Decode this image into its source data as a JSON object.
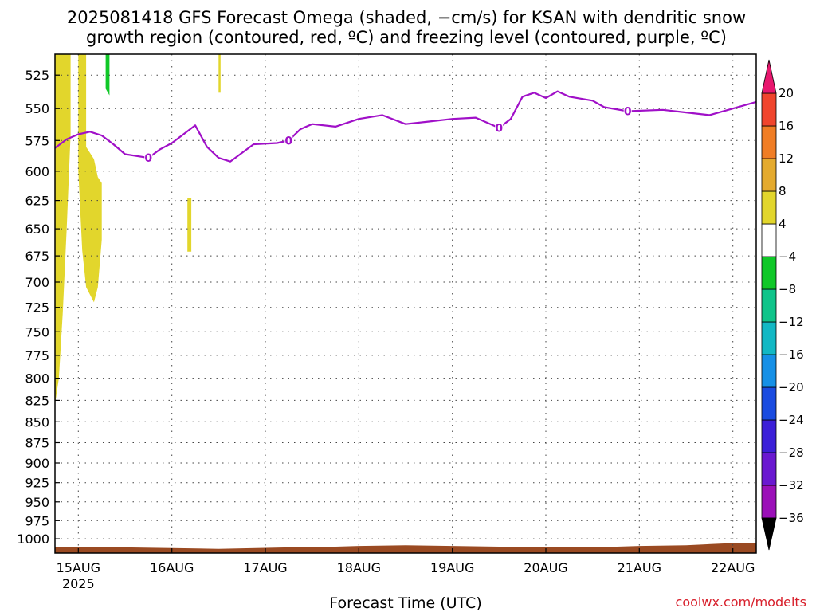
{
  "chart_data": {
    "type": "heatmap",
    "title": [
      "2025081418 GFS Forecast Omega (shaded, −cm/s) for KSAN with dendritic snow",
      "growth region (contoured, red, ºC) and freezing level (contoured, purple, ºC)"
    ],
    "xlabel": "Forecast Time (UTC)",
    "credit": "coolwx.com/modelts",
    "yaxis": {
      "scale": "log-pressure",
      "ticks": [
        525,
        550,
        575,
        600,
        625,
        650,
        675,
        700,
        725,
        750,
        775,
        800,
        825,
        850,
        875,
        900,
        925,
        950,
        975,
        1000
      ],
      "ylim": [
        1020,
        510
      ]
    },
    "xaxis": {
      "xlim": [
        "2025-08-14 18:00",
        "2025-08-22 06:00"
      ],
      "ticks": [
        {
          "t": "2025-08-15 00:00",
          "label": "15AUG",
          "sublabel": "2025"
        },
        {
          "t": "2025-08-16 00:00",
          "label": "16AUG"
        },
        {
          "t": "2025-08-17 00:00",
          "label": "17AUG"
        },
        {
          "t": "2025-08-18 00:00",
          "label": "18AUG"
        },
        {
          "t": "2025-08-19 00:00",
          "label": "19AUG"
        },
        {
          "t": "2025-08-20 00:00",
          "label": "20AUG"
        },
        {
          "t": "2025-08-21 00:00",
          "label": "21AUG"
        },
        {
          "t": "2025-08-22 00:00",
          "label": "22AUG"
        }
      ]
    },
    "grid": true,
    "colorbar": {
      "levels": [
        -36,
        -32,
        -28,
        -24,
        -20,
        -16,
        -12,
        -8,
        -4,
        4,
        8,
        12,
        16,
        20
      ],
      "colors": [
        "#9a9a9a",
        "#9b10b8",
        "#6a18d0",
        "#3c1fd8",
        "#1a4be0",
        "#1690e6",
        "#12b8c4",
        "#10c48a",
        "#10c828",
        "#ffffff",
        "#e2d62c",
        "#e4aa2e",
        "#f07d25",
        "#f0452d",
        "#ee1e78"
      ],
      "below_color": "#000000",
      "above_color": "#e8176e"
    },
    "freezing_level": {
      "label": "0",
      "color": "#a010c8",
      "points": [
        [
          "2025-08-14 18:00",
          581
        ],
        [
          "2025-08-14 21:00",
          574
        ],
        [
          "2025-08-15 00:00",
          570
        ],
        [
          "2025-08-15 03:00",
          568
        ],
        [
          "2025-08-15 06:00",
          571
        ],
        [
          "2025-08-15 09:00",
          578
        ],
        [
          "2025-08-15 12:00",
          586
        ],
        [
          "2025-08-15 18:00",
          589
        ],
        [
          "2025-08-15 21:00",
          582
        ],
        [
          "2025-08-16 00:00",
          577
        ],
        [
          "2025-08-16 03:00",
          570
        ],
        [
          "2025-08-16 06:00",
          563
        ],
        [
          "2025-08-16 09:00",
          580
        ],
        [
          "2025-08-16 12:00",
          589
        ],
        [
          "2025-08-16 15:00",
          592
        ],
        [
          "2025-08-16 21:00",
          578
        ],
        [
          "2025-08-17 03:00",
          577
        ],
        [
          "2025-08-17 06:00",
          575
        ],
        [
          "2025-08-17 09:00",
          566
        ],
        [
          "2025-08-17 12:00",
          562
        ],
        [
          "2025-08-17 18:00",
          564
        ],
        [
          "2025-08-18 00:00",
          558
        ],
        [
          "2025-08-18 06:00",
          555
        ],
        [
          "2025-08-18 12:00",
          562
        ],
        [
          "2025-08-18 18:00",
          560
        ],
        [
          "2025-08-19 00:00",
          558
        ],
        [
          "2025-08-19 06:00",
          557
        ],
        [
          "2025-08-19 12:00",
          565
        ],
        [
          "2025-08-19 15:00",
          558
        ],
        [
          "2025-08-19 18:00",
          541
        ],
        [
          "2025-08-19 21:00",
          538
        ],
        [
          "2025-08-20 00:00",
          542
        ],
        [
          "2025-08-20 03:00",
          537
        ],
        [
          "2025-08-20 06:00",
          541
        ],
        [
          "2025-08-20 12:00",
          544
        ],
        [
          "2025-08-20 15:00",
          549
        ],
        [
          "2025-08-20 21:00",
          552
        ],
        [
          "2025-08-21 06:00",
          551
        ],
        [
          "2025-08-21 12:00",
          553
        ],
        [
          "2025-08-21 18:00",
          555
        ],
        [
          "2025-08-22 00:00",
          550
        ],
        [
          "2025-08-22 06:00",
          545
        ]
      ]
    },
    "omega_regions": [
      {
        "value": 5,
        "color": "#e2d62c",
        "polygon": [
          [
            "2025-08-14 18:00",
            510
          ],
          [
            "2025-08-14 22:00",
            510
          ],
          [
            "2025-08-14 22:00",
            570
          ],
          [
            "2025-08-14 21:00",
            650
          ],
          [
            "2025-08-14 20:00",
            730
          ],
          [
            "2025-08-14 19:00",
            800
          ],
          [
            "2025-08-14 18:00",
            830
          ]
        ]
      },
      {
        "value": 5,
        "color": "#e2d62c",
        "polygon": [
          [
            "2025-08-15 00:00",
            510
          ],
          [
            "2025-08-15 02:00",
            510
          ],
          [
            "2025-08-15 02:00",
            580
          ],
          [
            "2025-08-15 04:00",
            590
          ],
          [
            "2025-08-15 05:00",
            605
          ],
          [
            "2025-08-15 06:00",
            610
          ],
          [
            "2025-08-15 06:00",
            660
          ],
          [
            "2025-08-15 05:00",
            705
          ],
          [
            "2025-08-15 04:00",
            720
          ],
          [
            "2025-08-15 02:00",
            705
          ],
          [
            "2025-08-15 01:00",
            670
          ],
          [
            "2025-08-15 00:00",
            600
          ]
        ]
      },
      {
        "value": 5,
        "color": "#e2d62c",
        "polygon": [
          [
            "2025-08-16 04:00",
            623
          ],
          [
            "2025-08-16 05:00",
            623
          ],
          [
            "2025-08-16 05:00",
            671
          ],
          [
            "2025-08-16 04:00",
            671
          ]
        ]
      },
      {
        "value": 5,
        "color": "#e2d62c",
        "polygon": [
          [
            "2025-08-16 12:00",
            510
          ],
          [
            "2025-08-16 12:30",
            510
          ],
          [
            "2025-08-16 12:30",
            538
          ],
          [
            "2025-08-16 12:00",
            538
          ]
        ]
      },
      {
        "value": -6,
        "color": "#10c828",
        "polygon": [
          [
            "2025-08-15 07:00",
            510
          ],
          [
            "2025-08-15 08:00",
            510
          ],
          [
            "2025-08-15 08:00",
            540
          ],
          [
            "2025-08-15 07:00",
            535
          ]
        ]
      }
    ],
    "surface": {
      "color": "#9a4a22",
      "points": [
        [
          "2025-08-14 18:00",
          1011
        ],
        [
          "2025-08-15 06:00",
          1011
        ],
        [
          "2025-08-15 12:00",
          1012
        ],
        [
          "2025-08-16 00:00",
          1013
        ],
        [
          "2025-08-16 12:00",
          1014
        ],
        [
          "2025-08-17 06:00",
          1012
        ],
        [
          "2025-08-17 18:00",
          1011
        ],
        [
          "2025-08-18 00:00",
          1010
        ],
        [
          "2025-08-18 12:00",
          1009
        ],
        [
          "2025-08-19 00:00",
          1010
        ],
        [
          "2025-08-19 12:00",
          1011
        ],
        [
          "2025-08-20 00:00",
          1011
        ],
        [
          "2025-08-20 12:00",
          1012
        ],
        [
          "2025-08-21 00:00",
          1010
        ],
        [
          "2025-08-21 12:00",
          1009
        ],
        [
          "2025-08-22 00:00",
          1006
        ],
        [
          "2025-08-22 06:00",
          1006
        ]
      ]
    }
  }
}
